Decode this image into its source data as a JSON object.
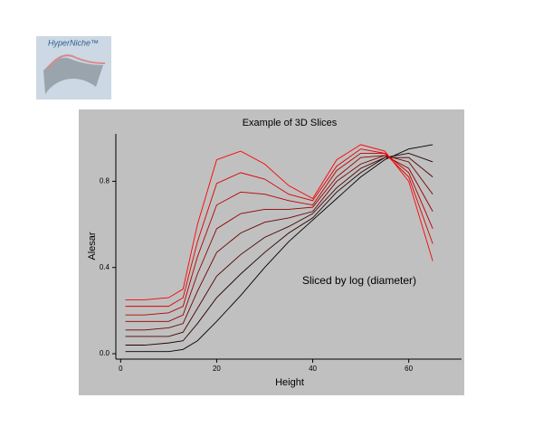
{
  "logo": {
    "text": "HyperNiche™"
  },
  "chart_data": {
    "type": "line",
    "title": "Example of 3D Slices",
    "x_label": "Height",
    "y_label": "Alesar",
    "annotation": "Sliced by log (diameter)",
    "x": [
      1,
      5,
      10,
      13,
      16,
      20,
      25,
      30,
      35,
      40,
      45,
      50,
      55,
      60,
      65
    ],
    "series": [
      {
        "color": "#000000",
        "values": [
          0.01,
          0.01,
          0.01,
          0.02,
          0.06,
          0.15,
          0.27,
          0.4,
          0.52,
          0.62,
          0.72,
          0.82,
          0.9,
          0.95,
          0.97
        ]
      },
      {
        "color": "#240000",
        "values": [
          0.04,
          0.04,
          0.05,
          0.06,
          0.14,
          0.26,
          0.37,
          0.47,
          0.56,
          0.63,
          0.75,
          0.84,
          0.91,
          0.93,
          0.89
        ]
      },
      {
        "color": "#490000",
        "values": [
          0.08,
          0.08,
          0.08,
          0.1,
          0.21,
          0.36,
          0.46,
          0.54,
          0.59,
          0.65,
          0.77,
          0.86,
          0.91,
          0.91,
          0.82
        ]
      },
      {
        "color": "#6d0000",
        "values": [
          0.11,
          0.11,
          0.12,
          0.14,
          0.29,
          0.47,
          0.56,
          0.61,
          0.63,
          0.66,
          0.8,
          0.88,
          0.92,
          0.89,
          0.74
        ]
      },
      {
        "color": "#920000",
        "values": [
          0.15,
          0.15,
          0.15,
          0.18,
          0.37,
          0.58,
          0.65,
          0.67,
          0.67,
          0.68,
          0.82,
          0.91,
          0.92,
          0.86,
          0.66
        ]
      },
      {
        "color": "#b60000",
        "values": [
          0.18,
          0.18,
          0.19,
          0.22,
          0.45,
          0.69,
          0.75,
          0.74,
          0.71,
          0.69,
          0.85,
          0.93,
          0.93,
          0.84,
          0.58
        ]
      },
      {
        "color": "#db0000",
        "values": [
          0.22,
          0.22,
          0.22,
          0.26,
          0.52,
          0.79,
          0.84,
          0.81,
          0.74,
          0.71,
          0.87,
          0.95,
          0.93,
          0.82,
          0.51
        ]
      },
      {
        "color": "#ff0000",
        "values": [
          0.25,
          0.25,
          0.26,
          0.3,
          0.6,
          0.9,
          0.94,
          0.88,
          0.78,
          0.72,
          0.9,
          0.97,
          0.94,
          0.8,
          0.43
        ]
      }
    ],
    "xlim": [
      -1,
      71
    ],
    "xticks": [
      0,
      20,
      40,
      60
    ],
    "ylim": [
      -0.025,
      1.02
    ],
    "yticks": [
      {
        "value": 0,
        "label": "0.0"
      },
      0.4,
      0.8
    ]
  }
}
